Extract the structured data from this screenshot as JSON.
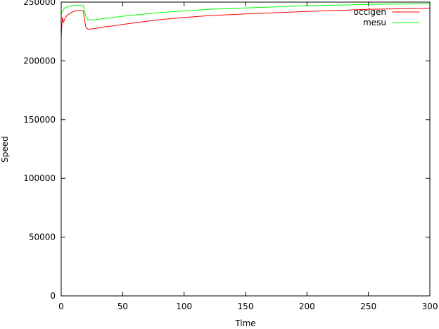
{
  "chart_data": {
    "type": "line",
    "title": "",
    "xlabel": "Time",
    "ylabel": "Speed",
    "xlim": [
      0,
      300
    ],
    "ylim": [
      0,
      250000
    ],
    "xticks": [
      0,
      50,
      100,
      150,
      200,
      250,
      300
    ],
    "yticks": [
      0,
      50000,
      100000,
      150000,
      200000,
      250000
    ],
    "xtick_labels": [
      "0",
      "50",
      "100",
      "150",
      "200",
      "250",
      "300"
    ],
    "ytick_labels": [
      "0",
      "50000",
      "100000",
      "150000",
      "200000",
      "250000"
    ],
    "grid": false,
    "legend_position": "top-right",
    "series": [
      {
        "name": "occigen",
        "color": "#ff0000",
        "x": [
          0,
          0.5,
          1,
          2,
          3,
          5,
          8,
          11,
          14,
          16,
          18,
          19,
          20,
          21,
          22,
          24,
          27,
          30,
          35,
          40,
          50,
          60,
          80,
          100,
          120,
          150,
          175,
          200,
          225,
          250,
          275,
          300
        ],
        "y": [
          220000,
          230000,
          237000,
          233000,
          236000,
          239000,
          241000,
          242500,
          243000,
          243000,
          242500,
          235000,
          229000,
          227500,
          227000,
          227000,
          227500,
          228000,
          229000,
          229500,
          231000,
          232500,
          235000,
          237000,
          238500,
          240000,
          241000,
          242000,
          243000,
          243800,
          244300,
          244700
        ]
      },
      {
        "name": "mesu",
        "color": "#00ff00",
        "x": [
          0,
          1,
          2,
          3,
          5,
          8,
          11,
          14,
          16,
          18,
          19,
          20,
          21,
          22,
          24,
          27,
          30,
          35,
          40,
          50,
          60,
          80,
          100,
          120,
          150,
          175,
          200,
          225,
          250,
          275,
          300
        ],
        "y": [
          240000,
          242000,
          244000,
          245000,
          246000,
          246700,
          247000,
          247200,
          247300,
          247000,
          242000,
          238000,
          236000,
          235000,
          234800,
          235000,
          235300,
          236000,
          236500,
          238000,
          239000,
          241000,
          242500,
          243800,
          245000,
          246000,
          247000,
          247500,
          248000,
          248300,
          248600
        ]
      }
    ]
  }
}
